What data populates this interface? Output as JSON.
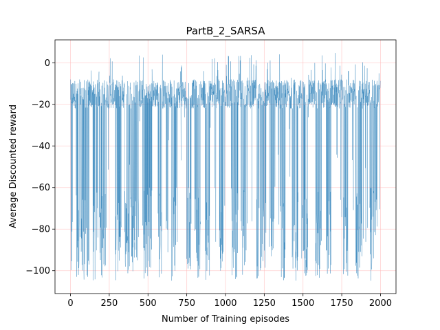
{
  "chart_data": {
    "type": "line",
    "title": "PartB_2_SARSA",
    "xlabel": "Number of Training episodes",
    "ylabel": "Average Discounted reward",
    "xlim": [
      -100,
      2100
    ],
    "ylim": [
      -111,
      11
    ],
    "xticks": [
      0,
      250,
      500,
      750,
      1000,
      1250,
      1500,
      1750,
      2000
    ],
    "yticks": [
      0,
      -20,
      -40,
      -60,
      -80,
      -100
    ],
    "grid": true,
    "grid_color": "#ffb3b3",
    "series": [
      {
        "color": "#1f77b4",
        "episodes": 2000,
        "typical_range": [
          -22,
          -8
        ],
        "min": -105,
        "max": 5,
        "deep_dip_regions": [
          [
            0,
            12
          ],
          [
            40,
            120
          ],
          [
            145,
            175
          ],
          [
            190,
            230
          ],
          [
            290,
            330
          ],
          [
            350,
            380
          ],
          [
            385,
            440
          ],
          [
            470,
            520
          ],
          [
            560,
            590
          ],
          [
            650,
            690
          ],
          [
            745,
            775
          ],
          [
            800,
            840
          ],
          [
            870,
            900
          ],
          [
            960,
            990
          ],
          [
            1040,
            1080
          ],
          [
            1110,
            1140
          ],
          [
            1200,
            1260
          ],
          [
            1290,
            1310
          ],
          [
            1355,
            1385
          ],
          [
            1430,
            1470
          ],
          [
            1490,
            1530
          ],
          [
            1580,
            1620
          ],
          [
            1650,
            1680
          ],
          [
            1760,
            1790
          ],
          [
            1840,
            1880
          ],
          [
            1930,
            1980
          ]
        ]
      }
    ]
  }
}
